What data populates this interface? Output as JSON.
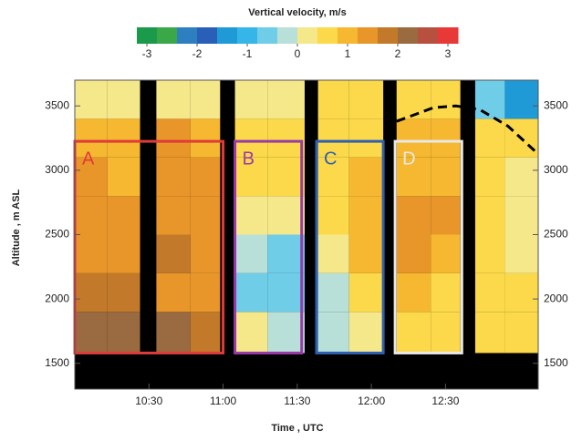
{
  "chart_data": {
    "type": "heatmap",
    "title": "Vertical velocity, m/s",
    "x_label": "Time , UTC",
    "y_label": "Altitude , m ASL",
    "xlim": [
      10.0,
      13.125
    ],
    "xticks": [
      {
        "value": 10.5,
        "label": "10:30"
      },
      {
        "value": 11.0,
        "label": "11:00"
      },
      {
        "value": 11.5,
        "label": "11:30"
      },
      {
        "value": 12.0,
        "label": "12:00"
      },
      {
        "value": 12.5,
        "label": "12:30"
      }
    ],
    "ylim": [
      1300,
      3700
    ],
    "yticks": [
      1500,
      2000,
      2500,
      3000,
      3500
    ],
    "clim": [
      -3.2,
      3.2
    ],
    "cticks": [
      -3,
      -2,
      -1,
      0,
      1,
      2,
      3
    ],
    "colorscale": [
      "#1a9a4a",
      "#3aa848",
      "#2e7fc0",
      "#2a5fb8",
      "#1f9ad6",
      "#35b5e8",
      "#6fcde8",
      "#b8e0d8",
      "#f5e88a",
      "#fbd94a",
      "#f5b830",
      "#e8962a",
      "#c27a2a",
      "#9a6a40",
      "#b85040",
      "#e83838"
    ],
    "row_edges": [
      1580,
      1900,
      2200,
      2500,
      2800,
      3100,
      3400,
      3700
    ],
    "columns": [
      {
        "start": 10.0,
        "end": 10.22,
        "values": [
          2.2,
          1.8,
          1.5,
          1.3,
          1.2,
          1.0,
          0.3
        ]
      },
      {
        "start": 10.22,
        "end": 10.44,
        "values": [
          2.0,
          1.6,
          1.4,
          1.3,
          1.1,
          1.0,
          0.2
        ]
      },
      {
        "start": 10.55,
        "end": 10.78,
        "values": [
          2.0,
          1.5,
          1.6,
          1.5,
          1.4,
          1.2,
          0.2
        ]
      },
      {
        "start": 10.78,
        "end": 10.98,
        "values": [
          1.8,
          1.2,
          1.4,
          1.3,
          1.2,
          1.0,
          0.3
        ]
      },
      {
        "start": 11.08,
        "end": 11.3,
        "values": [
          0.0,
          -0.5,
          -0.3,
          0.2,
          0.5,
          0.6,
          0.2
        ]
      },
      {
        "start": 11.3,
        "end": 11.55,
        "values": [
          -0.3,
          -0.6,
          -0.5,
          0.0,
          0.4,
          0.5,
          0.1
        ]
      },
      {
        "start": 11.64,
        "end": 11.85,
        "values": [
          -0.2,
          -0.4,
          0.3,
          0.6,
          0.7,
          0.6,
          0.4
        ]
      },
      {
        "start": 11.85,
        "end": 12.08,
        "values": [
          0.2,
          0.4,
          0.8,
          1.0,
          0.9,
          0.7,
          0.5
        ]
      },
      {
        "start": 12.17,
        "end": 12.4,
        "values": [
          0.6,
          0.8,
          1.2,
          1.2,
          1.1,
          0.9,
          0.7
        ]
      },
      {
        "start": 12.4,
        "end": 12.6,
        "values": [
          0.5,
          0.7,
          1.1,
          1.2,
          1.0,
          0.8,
          0.6
        ]
      },
      {
        "start": 12.7,
        "end": 12.9,
        "values": [
          0.6,
          0.6,
          0.6,
          0.5,
          0.5,
          0.5,
          -0.8
        ]
      },
      {
        "start": 12.9,
        "end": 13.125,
        "values": [
          0.5,
          0.4,
          0.3,
          0.2,
          0.1,
          0.4,
          -1.5
        ]
      }
    ],
    "boxes": [
      {
        "label": "A",
        "color": "#e03a3a",
        "x": [
          10.0,
          11.0
        ],
        "y": [
          1580,
          3225
        ]
      },
      {
        "label": "B",
        "color": "#9a3aa8",
        "x": [
          11.08,
          11.53
        ],
        "y": [
          1580,
          3225
        ]
      },
      {
        "label": "C",
        "color": "#2f5fb0",
        "x": [
          11.63,
          12.08
        ],
        "y": [
          1580,
          3225
        ]
      },
      {
        "label": "D",
        "color": "#e8e8e8",
        "x": [
          12.16,
          12.61
        ],
        "y": [
          1580,
          3225
        ]
      }
    ],
    "dashed_line": {
      "x": [
        12.17,
        12.42,
        12.57,
        12.73,
        12.92,
        13.12
      ],
      "y": [
        3380,
        3487,
        3500,
        3472,
        3344,
        3131
      ]
    }
  }
}
